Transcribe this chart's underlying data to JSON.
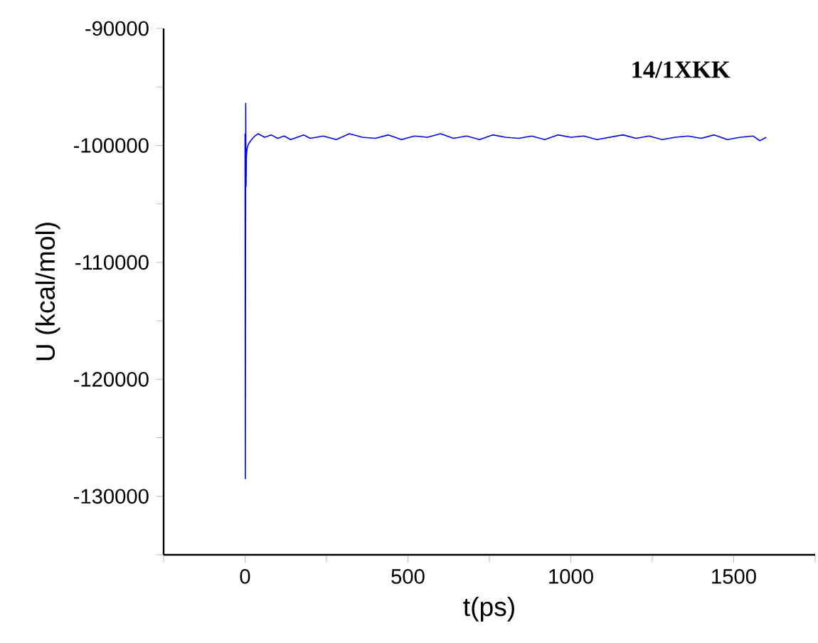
{
  "chart_data": {
    "type": "line",
    "xlabel": "t(ps)",
    "ylabel": "U (kcal/mol)",
    "annotations": [
      "14/1XKK"
    ],
    "xlim": [
      -250,
      1750
    ],
    "xticks": [
      {
        "value": -250,
        "label": null
      },
      0,
      {
        "value": 250,
        "label": null
      },
      500,
      {
        "value": 750,
        "label": null
      },
      1000,
      {
        "value": 1250,
        "label": null
      },
      1500,
      {
        "value": 1750,
        "label": null
      }
    ],
    "ylim": [
      -135000,
      -90000
    ],
    "yticks": [
      {
        "value": -135000,
        "label": null
      },
      -130000,
      {
        "value": -125000,
        "label": null
      },
      -120000,
      {
        "value": -115000,
        "label": null
      },
      -110000,
      {
        "value": -105000,
        "label": null
      },
      -100000,
      {
        "value": -95000,
        "label": null
      },
      -90000
    ],
    "marker": "none",
    "line_style": "solid",
    "series": [
      {
        "color": "#0000ff",
        "x": [
          0,
          1,
          2,
          3,
          4,
          6,
          10,
          15,
          20,
          30,
          40,
          60,
          80,
          100,
          120,
          140,
          160,
          180,
          200,
          240,
          280,
          320,
          360,
          400,
          440,
          480,
          520,
          560,
          600,
          640,
          680,
          720,
          760,
          800,
          840,
          880,
          920,
          960,
          1000,
          1040,
          1080,
          1120,
          1160,
          1200,
          1240,
          1280,
          1320,
          1360,
          1400,
          1440,
          1480,
          1520,
          1560,
          1580,
          1600
        ],
        "values": [
          -99000,
          -128500,
          -96400,
          -103500,
          -101000,
          -100300,
          -99900,
          -99700,
          -99500,
          -99200,
          -99000,
          -99300,
          -99100,
          -99400,
          -99200,
          -99500,
          -99300,
          -99100,
          -99400,
          -99200,
          -99500,
          -99000,
          -99300,
          -99400,
          -99100,
          -99500,
          -99200,
          -99300,
          -99000,
          -99400,
          -99200,
          -99500,
          -99100,
          -99300,
          -99400,
          -99200,
          -99500,
          -99100,
          -99300,
          -99200,
          -99500,
          -99300,
          -99100,
          -99400,
          -99200,
          -99500,
          -99300,
          -99200,
          -99400,
          -99100,
          -99500,
          -99300,
          -99200,
          -99600,
          -99300
        ]
      }
    ]
  }
}
